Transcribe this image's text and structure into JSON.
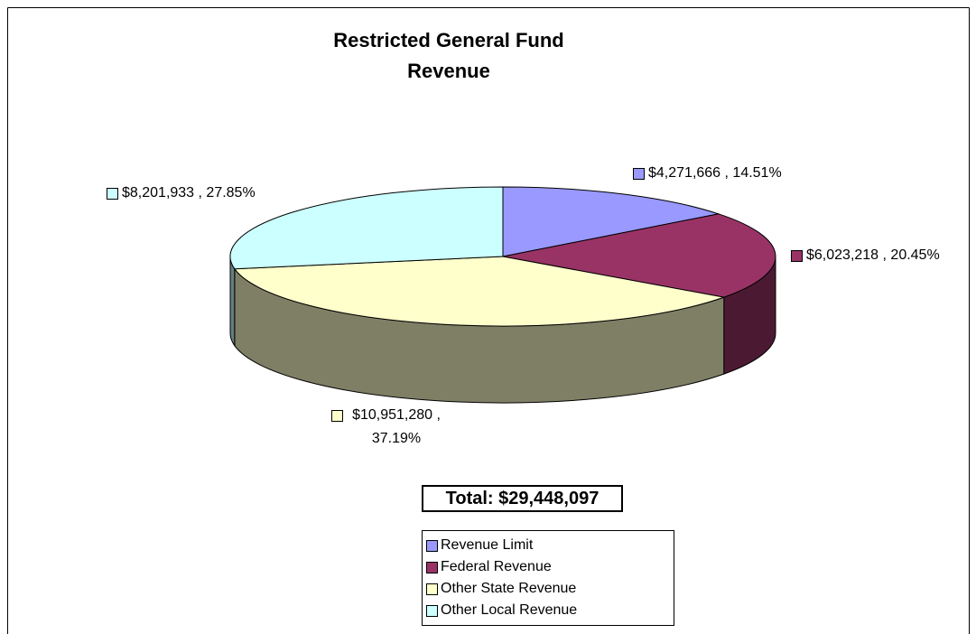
{
  "chart_data": {
    "type": "pie3d",
    "title": "Restricted General Fund Revenue",
    "categories": [
      "Revenue Limit",
      "Federal Revenue",
      "Other State Revenue",
      "Other Local Revenue"
    ],
    "values": [
      4271666,
      6023218,
      10951280,
      8201933
    ],
    "value_labels": [
      "$4,271,666 , 14.51%",
      "$6,023,218 , 20.45%",
      "$10,951,280 , 37.19%",
      "$8,201,933 , 27.85%"
    ],
    "colors": [
      "#9999FF",
      "#993366",
      "#FFFFCC",
      "#CCFFFF"
    ],
    "total_label": "Total:  $29,448,097",
    "legend": true
  }
}
